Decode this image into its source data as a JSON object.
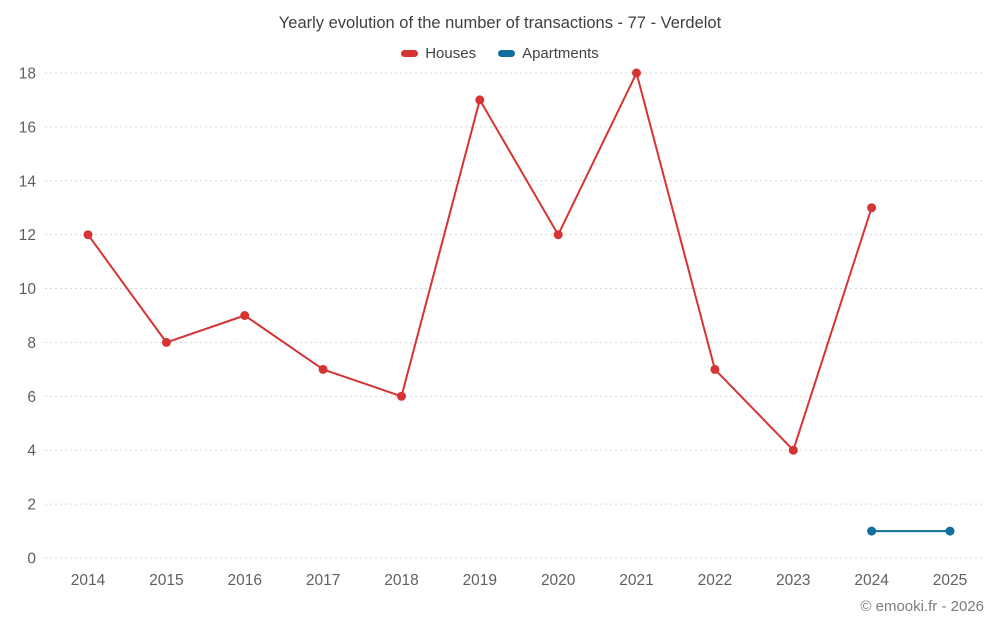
{
  "title": "Yearly evolution of the number of transactions - 77 - Verdelot",
  "watermark": "© emooki.fr - 2026",
  "chart_data": {
    "type": "line",
    "title": "Yearly evolution of the number of transactions - 77 - Verdelot",
    "categories": [
      "2014",
      "2015",
      "2016",
      "2017",
      "2018",
      "2019",
      "2020",
      "2021",
      "2022",
      "2023",
      "2024",
      "2025"
    ],
    "series": [
      {
        "name": "Houses",
        "color": "#d63434",
        "values": [
          12,
          8,
          9,
          7,
          6,
          17,
          12,
          18,
          7,
          4,
          13,
          null
        ]
      },
      {
        "name": "Apartments",
        "color": "#126e9c",
        "values": [
          null,
          null,
          null,
          null,
          null,
          null,
          null,
          null,
          null,
          null,
          1,
          1
        ]
      }
    ],
    "xlabel": "",
    "ylabel": "",
    "ylim": [
      0,
      18
    ],
    "ytick_step": 2,
    "grid": "horizontal-dotted",
    "legend_position": "top",
    "marker_radius": 4.5
  }
}
